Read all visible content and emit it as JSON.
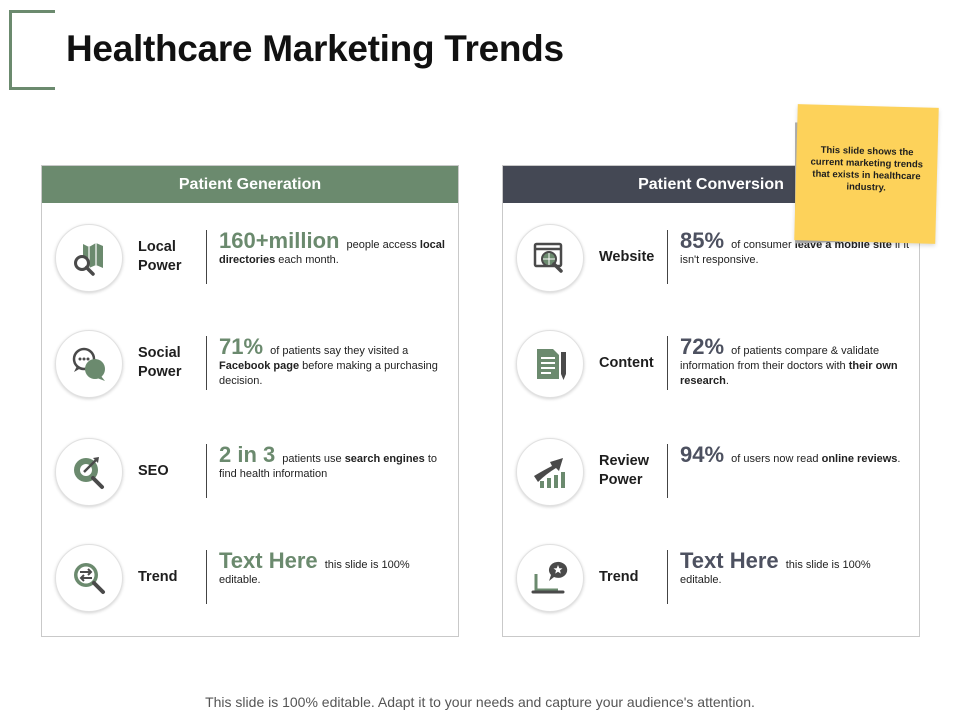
{
  "slide": {
    "title": "Healthcare Marketing Trends",
    "footer": "This slide is 100% editable. Adapt it to your needs and capture your audience's attention."
  },
  "note": {
    "text": "This slide shows the current marketing trends that exists in healthcare industry."
  },
  "colors": {
    "green": "#6b8a6e",
    "dark": "#444854",
    "note": "#fdd25a"
  },
  "left_panel": {
    "header": "Patient Generation",
    "rows": [
      {
        "icon": "map-search-icon",
        "label_line1": "Local",
        "label_line2": "Power",
        "big": "160+million",
        "t1": " people access ",
        "b1": "local directories",
        "t2": " each month.",
        "b2": "",
        "t3": ""
      },
      {
        "icon": "chat-bubbles-icon",
        "label_line1": "Social",
        "label_line2": "Power",
        "big": "71%",
        "t1": " of patients say they visited a ",
        "b1": "Facebook page",
        "t2": " before making a purchasing decision.",
        "b2": "",
        "t3": ""
      },
      {
        "icon": "seo-target-icon",
        "label_line1": "SEO",
        "label_line2": "",
        "big": "2 in 3",
        "t1": " patients use ",
        "b1": "search engines",
        "t2": " to find health information",
        "b2": "",
        "t3": ""
      },
      {
        "icon": "trend-search-icon",
        "label_line1": "Trend",
        "label_line2": "",
        "big": "Text Here",
        "t1": " this slide is 100% editable.",
        "b1": "",
        "t2": "",
        "b2": "",
        "t3": ""
      }
    ]
  },
  "right_panel": {
    "header": "Patient Conversion",
    "rows": [
      {
        "icon": "website-search-icon",
        "label_line1": "Website",
        "label_line2": "",
        "big": "85%",
        "t1": " of consumer ",
        "b1": "leave a mobile site",
        "t2": " if it isn't responsive.",
        "b2": "",
        "t3": ""
      },
      {
        "icon": "document-pen-icon",
        "label_line1": "Content",
        "label_line2": "",
        "big": "72%",
        "t1": " of patients compare & validate information from their doctors with ",
        "b1": "their own research",
        "t2": ".",
        "b2": "",
        "t3": ""
      },
      {
        "icon": "growth-arrow-icon",
        "label_line1": "Review",
        "label_line2": "Power",
        "big": "94%",
        "t1": " of users now read ",
        "b1": "online reviews",
        "t2": ".",
        "b2": "",
        "t3": ""
      },
      {
        "icon": "laptop-star-icon",
        "label_line1": "Trend",
        "label_line2": "",
        "big": "Text Here",
        "t1": " this slide is 100% editable.",
        "b1": "",
        "t2": "",
        "b2": "",
        "t3": ""
      }
    ]
  }
}
